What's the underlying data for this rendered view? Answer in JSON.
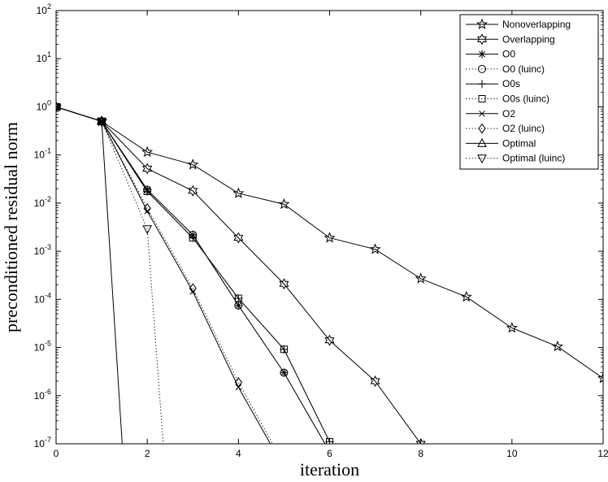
{
  "chart_data": {
    "type": "line",
    "title": "",
    "xlabel": "iteration",
    "ylabel": "preconditioned residual norm",
    "xlim": [
      0,
      12
    ],
    "ylim": [
      1e-07,
      100
    ],
    "yscale": "log",
    "grid": false,
    "legend_position": "top-right",
    "x_ticks": [
      "0",
      "2",
      "4",
      "6",
      "8",
      "10",
      "12"
    ],
    "y_ticks": [
      {
        "base": "10",
        "exp": "2",
        "value": 100
      },
      {
        "base": "10",
        "exp": "1",
        "value": 10
      },
      {
        "base": "10",
        "exp": "0",
        "value": 1
      },
      {
        "base": "10",
        "exp": "-1",
        "value": 0.1
      },
      {
        "base": "10",
        "exp": "-2",
        "value": 0.01
      },
      {
        "base": "10",
        "exp": "-3",
        "value": 0.001
      },
      {
        "base": "10",
        "exp": "-4",
        "value": 0.0001
      },
      {
        "base": "10",
        "exp": "-5",
        "value": 1e-05
      },
      {
        "base": "10",
        "exp": "-6",
        "value": 1e-06
      },
      {
        "base": "10",
        "exp": "-7",
        "value": 1e-07
      }
    ],
    "series": [
      {
        "name": "Nonoverlapping",
        "dash": "solid",
        "marker": "star5",
        "x": [
          0,
          1,
          2,
          3,
          4,
          5,
          6,
          7,
          8,
          9,
          10,
          11,
          12
        ],
        "y": [
          1,
          0.5,
          0.115,
          0.063,
          0.016,
          0.0095,
          0.0019,
          0.0011,
          0.00027,
          0.000113,
          2.55e-05,
          1.05e-05,
          2.3e-06
        ]
      },
      {
        "name": "Overlapping",
        "dash": "solid",
        "marker": "hexagram",
        "x": [
          0,
          1,
          2,
          3,
          4,
          5,
          6,
          7,
          8
        ],
        "y": [
          1,
          0.5,
          0.052,
          0.018,
          0.0019,
          0.00021,
          1.41e-05,
          2e-06,
          1e-07
        ]
      },
      {
        "name": "O0",
        "dash": "solid",
        "marker": "asterisk",
        "x": [
          0,
          1,
          2,
          3,
          4,
          5,
          5.9
        ],
        "y": [
          1,
          0.5,
          0.019,
          0.0022,
          7.5e-05,
          3e-06,
          1e-07
        ]
      },
      {
        "name": "O0 (luinc)",
        "dash": "dotted",
        "marker": "circle",
        "x": [
          0,
          1,
          2,
          3,
          4,
          5,
          5.9
        ],
        "y": [
          1,
          0.5,
          0.019,
          0.0022,
          7.5e-05,
          3e-06,
          1e-07
        ]
      },
      {
        "name": "O0s",
        "dash": "solid",
        "marker": "plus",
        "x": [
          0,
          1,
          2,
          3,
          4,
          5,
          6
        ],
        "y": [
          1,
          0.5,
          0.0175,
          0.0019,
          0.000105,
          9.2e-06,
          1.1e-07
        ]
      },
      {
        "name": "O0s (luinc)",
        "dash": "dotted",
        "marker": "square",
        "x": [
          0,
          1,
          2,
          3,
          4,
          5,
          6
        ],
        "y": [
          1,
          0.5,
          0.0175,
          0.0019,
          0.000105,
          9.2e-06,
          1.1e-07
        ]
      },
      {
        "name": "O2",
        "dash": "solid",
        "marker": "x",
        "x": [
          0,
          1,
          2,
          3,
          4,
          4.7
        ],
        "y": [
          1,
          0.5,
          0.0068,
          0.000145,
          1.5e-06,
          1e-07
        ]
      },
      {
        "name": "O2 (luinc)",
        "dash": "dotted",
        "marker": "diamond",
        "x": [
          0,
          1,
          2,
          3,
          4,
          4.75
        ],
        "y": [
          1,
          0.5,
          0.0078,
          0.00017,
          1.9e-06,
          1e-07
        ]
      },
      {
        "name": "Optimal",
        "dash": "solid",
        "marker": "triangle-up",
        "x": [
          0,
          1,
          1.45
        ],
        "y": [
          1,
          0.5,
          1e-07
        ]
      },
      {
        "name": "Optimal (luinc)",
        "dash": "dotted",
        "marker": "triangle-down",
        "x": [
          0,
          1,
          2,
          2.35
        ],
        "y": [
          1,
          0.5,
          0.0029,
          1e-07
        ]
      }
    ]
  }
}
